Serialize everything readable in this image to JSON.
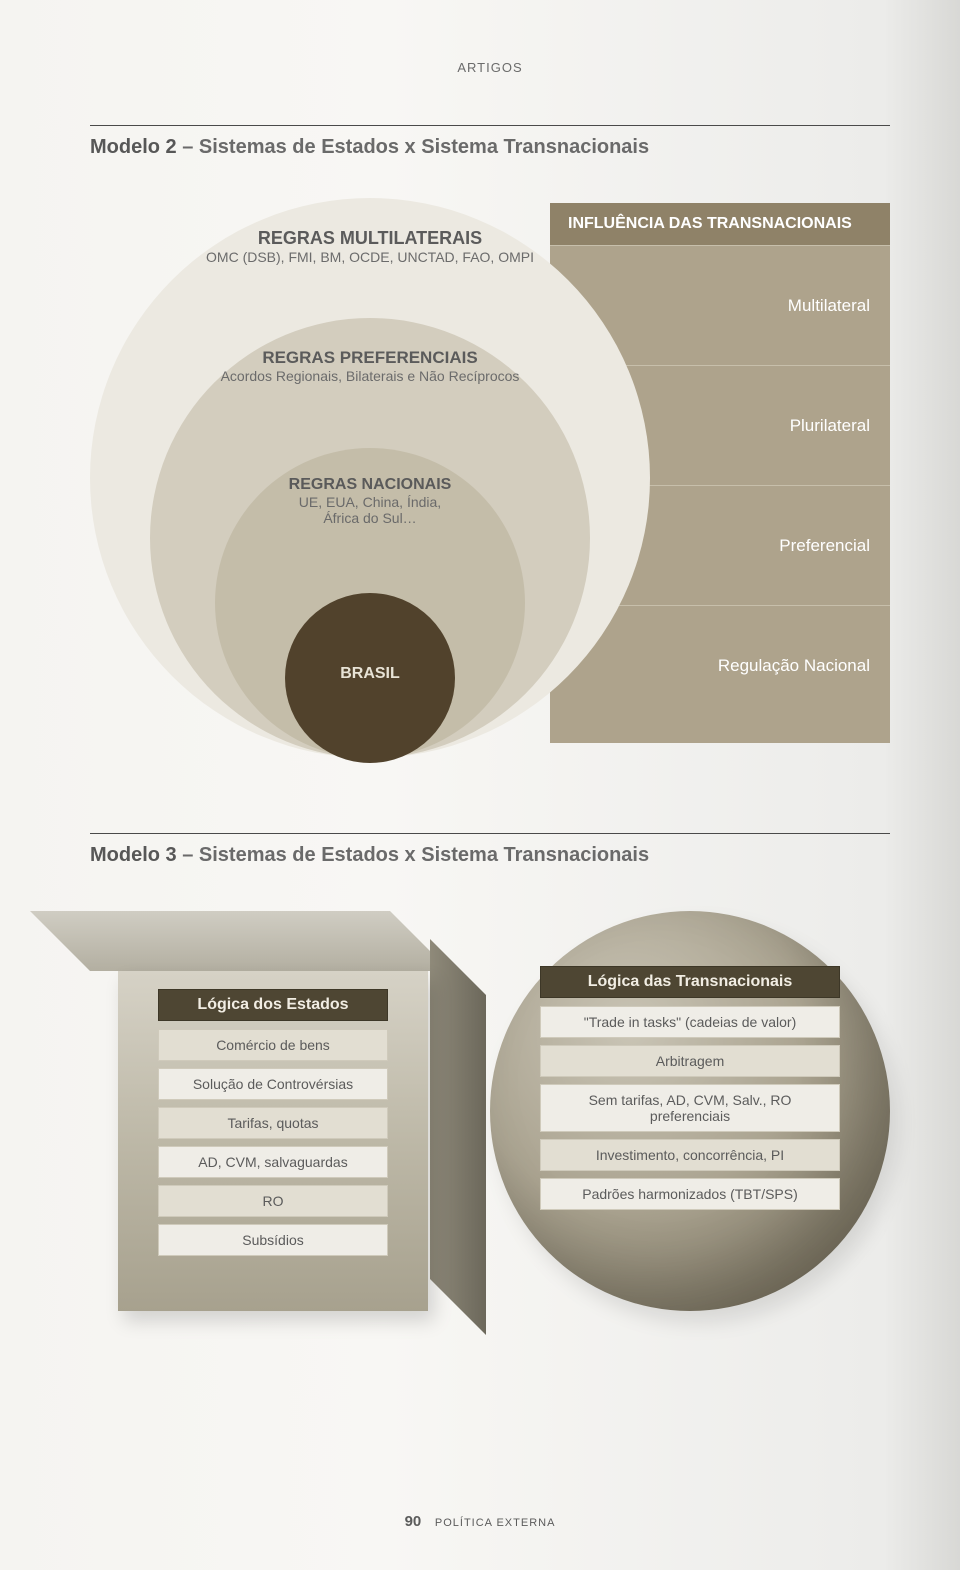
{
  "header": {
    "label": "ARTIGOS"
  },
  "modelo2": {
    "title_bold": "Modelo 2",
    "title_rest": " – Sistemas de Estados x Sistema Transnacionais",
    "circles": {
      "outer": {
        "title": "REGRAS MULTILATERAIS",
        "sub": "OMC (DSB), FMI, BM, OCDE, UNCTAD, FAO, OMPI",
        "fill": "#ece9e1"
      },
      "mid": {
        "title": "REGRAS PREFERENCIAIS",
        "sub": "Acordos Regionais, Bilaterais e Não Recíprocos",
        "fill": "#d3cdbe"
      },
      "inner": {
        "title": "REGRAS NACIONAIS",
        "sub": "UE, EUA, China, Índia,",
        "sub2": "África do Sul…",
        "fill": "#c4bda9"
      },
      "core": {
        "title": "BRASIL",
        "fill": "#51422c"
      }
    },
    "side": {
      "header": "INFLUÊNCIA DAS TRANSNACIONAIS",
      "header_bg": "#8f8268",
      "panel_bg": "#aea38c",
      "rows": [
        "Multilateral",
        "Plurilateral",
        "Preferencial",
        "Regulação Nacional"
      ]
    }
  },
  "modelo3": {
    "title_bold": "Modelo 3",
    "title_rest": " – Sistemas de Estados x Sistema Transnacionais",
    "cube": {
      "header": "Lógica dos Estados",
      "rows": [
        "Comércio de bens",
        "Solução de Controvérsias",
        "Tarifas, quotas",
        "AD, CVM, salvaguardas",
        "RO",
        "Subsídios"
      ]
    },
    "sphere": {
      "header": "Lógica das Transnacionais",
      "rows": [
        "\"Trade in tasks\" (cadeias de valor)",
        "Arbitragem",
        "Sem tarifas, AD, CVM, Salv., RO preferenciais",
        "Investimento, concorrência, PI",
        "Padrões harmonizados (TBT/SPS)"
      ]
    }
  },
  "footer": {
    "page": "90",
    "journal": "POLÍTICA EXTERNA"
  },
  "colors": {
    "rule": "#4a4a4a",
    "row_bg": "#efede7",
    "row_border": "#cfcabb",
    "header_dark": "#4e4633",
    "header_text": "#f1ede3"
  }
}
